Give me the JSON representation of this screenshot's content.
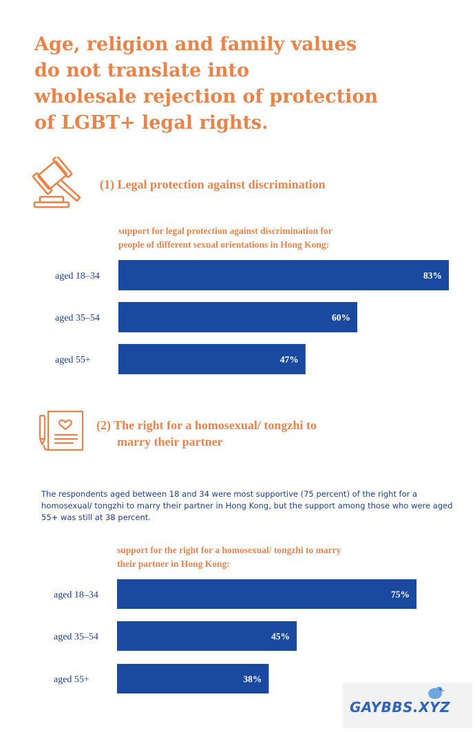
{
  "headline": [
    "Age, religion and family values",
    "do not translate into",
    "wholesale rejection of protection",
    "of LGBT+ legal rights."
  ],
  "section1": {
    "icon": "gavel-icon",
    "title": "(1) Legal protection against discrimination"
  },
  "section2": {
    "icon": "document-heart-icon",
    "title_lines": [
      "(2) The right for a homosexual/ tongzhi to",
      "marry their partner"
    ]
  },
  "paragraph": "The respondents aged between 18 and 34 were most supportive (75 percent) of the right for a homosexual/ tongzhi to marry their partner in Hong Kong, but the support among those who were aged 55+ was still at 38 percent.",
  "watermark": "GAYBBS.XYZ",
  "colors": {
    "accent": "#e8834a",
    "bar": "#1a4aa0",
    "text": "#1a3f8f"
  },
  "chart_data": [
    {
      "type": "bar",
      "orientation": "horizontal",
      "title_lines": [
        "support for legal protection against discrimination for",
        "people of different sexual orientations in Hong Kong:"
      ],
      "categories": [
        "aged 18–34",
        "aged 35–54",
        "aged 55+"
      ],
      "values": [
        83,
        60,
        47
      ],
      "value_labels": [
        "83%",
        "60%",
        "47%"
      ],
      "unit": "%"
    },
    {
      "type": "bar",
      "orientation": "horizontal",
      "title_lines": [
        "support for the right for a homosexual/ tongzhi to marry",
        "their partner in Hong Kong:"
      ],
      "categories": [
        "aged 18–34",
        "aged 35–54",
        "aged 55+"
      ],
      "values": [
        75,
        45,
        38
      ],
      "value_labels": [
        "75%",
        "45%",
        "38%"
      ],
      "unit": "%"
    }
  ]
}
